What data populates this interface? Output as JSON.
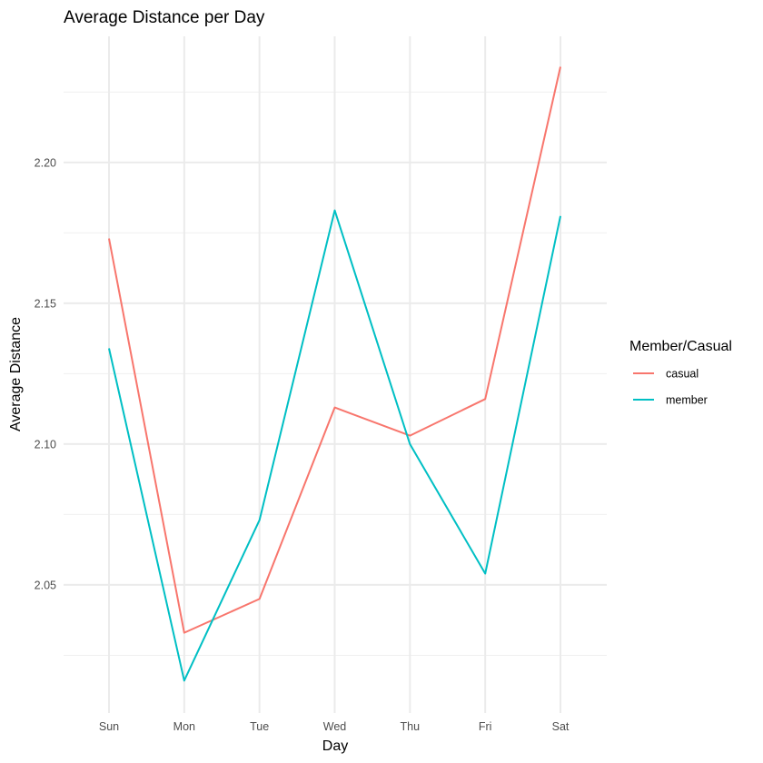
{
  "chart_data": {
    "type": "line",
    "title": "Average Distance per Day",
    "xlabel": "Day",
    "ylabel": "Average Distance",
    "categories": [
      "Sun",
      "Mon",
      "Tue",
      "Wed",
      "Thu",
      "Fri",
      "Sat"
    ],
    "ylim": [
      2.0045,
      2.2448
    ],
    "yticks": [
      2.05,
      2.1,
      2.15,
      2.2
    ],
    "ytick_labels": [
      "2.05",
      "2.10",
      "2.15",
      "2.20"
    ],
    "yminor": [
      2.025,
      2.075,
      2.125,
      2.175,
      2.225
    ],
    "grid": true,
    "legend": {
      "title": "Member/Casual",
      "placement": "right"
    },
    "series": [
      {
        "name": "casual",
        "color": "#F8766D",
        "values": [
          2.173,
          2.033,
          2.045,
          2.113,
          2.103,
          2.116,
          2.234
        ]
      },
      {
        "name": "member",
        "color": "#00BFC4",
        "values": [
          2.134,
          2.016,
          2.073,
          2.183,
          2.1,
          2.054,
          2.181
        ]
      }
    ]
  }
}
